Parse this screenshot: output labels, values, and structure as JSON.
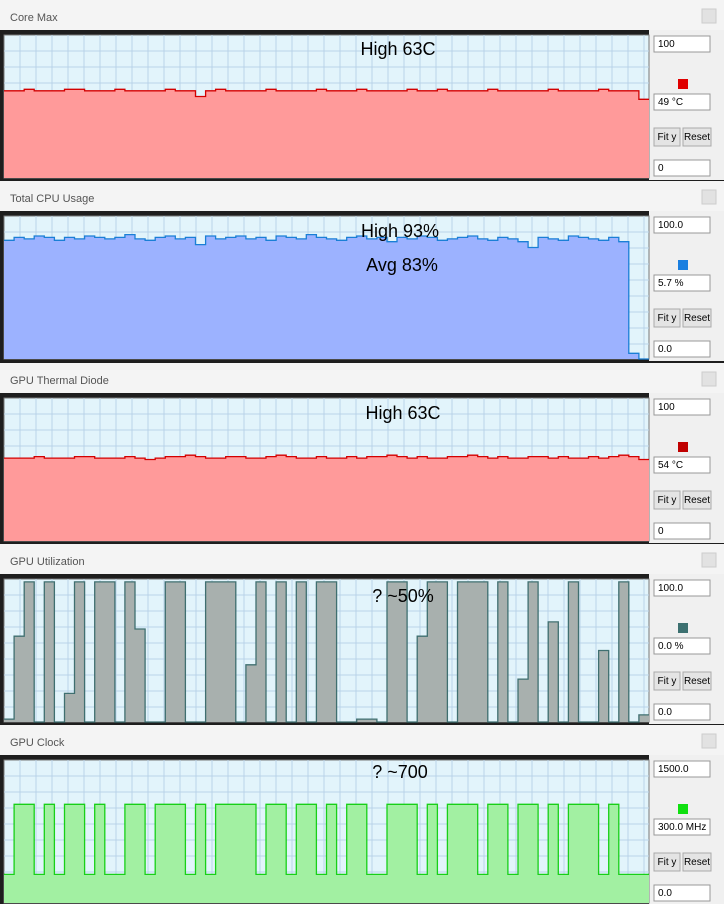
{
  "buttons": {
    "fit": "Fit y",
    "reset": "Reset"
  },
  "panels": [
    {
      "title": "Core Max",
      "annotations": [
        "High 63C"
      ],
      "current": "49 °C",
      "swatch": "#e00000",
      "line_color": "#d40000",
      "fill_color": "#ff9a9a",
      "ylim": [
        0,
        100
      ],
      "yticks": [
        0,
        100
      ],
      "values": [
        61,
        61,
        62,
        61,
        61,
        61,
        62,
        62,
        61,
        61,
        61,
        62,
        61,
        61,
        61,
        61,
        62,
        61,
        61,
        57,
        61,
        62,
        61,
        61,
        61,
        61,
        62,
        61,
        61,
        61,
        61,
        62,
        61,
        61,
        61,
        62,
        61,
        61,
        61,
        61,
        62,
        61,
        61,
        62,
        61,
        61,
        61,
        61,
        62,
        61,
        61,
        61,
        61,
        61,
        62,
        61,
        61,
        61,
        61,
        62,
        61,
        61,
        61,
        55
      ]
    },
    {
      "title": "Total CPU Usage",
      "annotations": [
        "High 93%",
        "Avg 83%"
      ],
      "current": "5.7 %",
      "swatch": "#1a7fe0",
      "line_color": "#1a7fd6",
      "fill_color": "#9cb2ff",
      "ylim": [
        0,
        100
      ],
      "yticks": [
        {
          "value": 0,
          "label": "0.0"
        },
        {
          "value": 100,
          "label": "100.0"
        }
      ],
      "values": [
        83,
        85,
        84,
        86,
        85,
        83,
        85,
        84,
        86,
        85,
        84,
        85,
        87,
        84,
        83,
        85,
        86,
        84,
        85,
        80,
        86,
        84,
        85,
        86,
        84,
        85,
        83,
        86,
        85,
        84,
        87,
        85,
        84,
        83,
        85,
        86,
        84,
        85,
        82,
        85,
        84,
        86,
        85,
        83,
        84,
        85,
        86,
        84,
        83,
        85,
        84,
        82,
        78,
        85,
        84,
        83,
        86,
        85,
        84,
        83,
        85,
        82,
        4,
        0
      ]
    },
    {
      "title": "GPU Thermal Diode",
      "annotations": [
        "High 63C"
      ],
      "current": "54 °C",
      "swatch": "#c00000",
      "line_color": "#d40000",
      "fill_color": "#ff9a9a",
      "ylim": [
        0,
        100
      ],
      "yticks": [
        0,
        100
      ],
      "values": [
        58,
        58,
        58,
        59,
        58,
        58,
        58,
        59,
        59,
        58,
        58,
        58,
        59,
        58,
        57,
        58,
        59,
        59,
        60,
        59,
        58,
        58,
        59,
        59,
        58,
        58,
        59,
        60,
        59,
        58,
        58,
        59,
        58,
        58,
        59,
        58,
        59,
        59,
        60,
        59,
        58,
        59,
        58,
        58,
        59,
        59,
        60,
        59,
        58,
        59,
        58,
        58,
        59,
        59,
        58,
        59,
        58,
        58,
        59,
        58,
        59,
        60,
        59,
        57
      ]
    },
    {
      "title": "GPU Utilization",
      "annotations": [
        "? ~50%"
      ],
      "current": "0.0 %",
      "swatch": "#3c7070",
      "line_color": "#3f6f70",
      "fill_color": "#a8b0ae",
      "ylim": [
        0,
        100
      ],
      "yticks": [
        {
          "value": 0,
          "label": "0.0"
        },
        {
          "value": 100,
          "label": "100.0"
        }
      ],
      "values": [
        2,
        60,
        98,
        0,
        98,
        0,
        20,
        98,
        0,
        98,
        98,
        0,
        98,
        65,
        0,
        0,
        98,
        98,
        0,
        0,
        98,
        98,
        98,
        0,
        40,
        98,
        0,
        98,
        0,
        98,
        0,
        98,
        98,
        0,
        0,
        2,
        2,
        0,
        98,
        98,
        0,
        60,
        98,
        98,
        0,
        98,
        98,
        98,
        0,
        98,
        0,
        30,
        98,
        0,
        70,
        0,
        98,
        0,
        0,
        50,
        0,
        98,
        0,
        5
      ]
    },
    {
      "title": "GPU Clock",
      "annotations": [
        "? ~700"
      ],
      "current": "300.0 MHz",
      "swatch": "#10e010",
      "line_color": "#18d018",
      "fill_color": "#a2f0a2",
      "ylim": [
        0,
        1500
      ],
      "yticks": [
        {
          "value": 0,
          "label": "0.0"
        },
        {
          "value": 1500,
          "label": "1500.0"
        }
      ],
      "values": [
        300,
        1035,
        1035,
        300,
        1035,
        300,
        1035,
        1035,
        300,
        1035,
        300,
        300,
        1035,
        1035,
        300,
        1035,
        1035,
        1035,
        300,
        1035,
        300,
        1035,
        1035,
        1035,
        1035,
        300,
        1035,
        1035,
        300,
        1035,
        1035,
        300,
        1035,
        300,
        1035,
        1035,
        300,
        300,
        1035,
        1035,
        1035,
        300,
        1035,
        300,
        1035,
        1035,
        1035,
        300,
        1035,
        1035,
        300,
        1035,
        1035,
        300,
        1035,
        300,
        1035,
        1035,
        1035,
        300,
        1035,
        300,
        300,
        300
      ]
    }
  ]
}
